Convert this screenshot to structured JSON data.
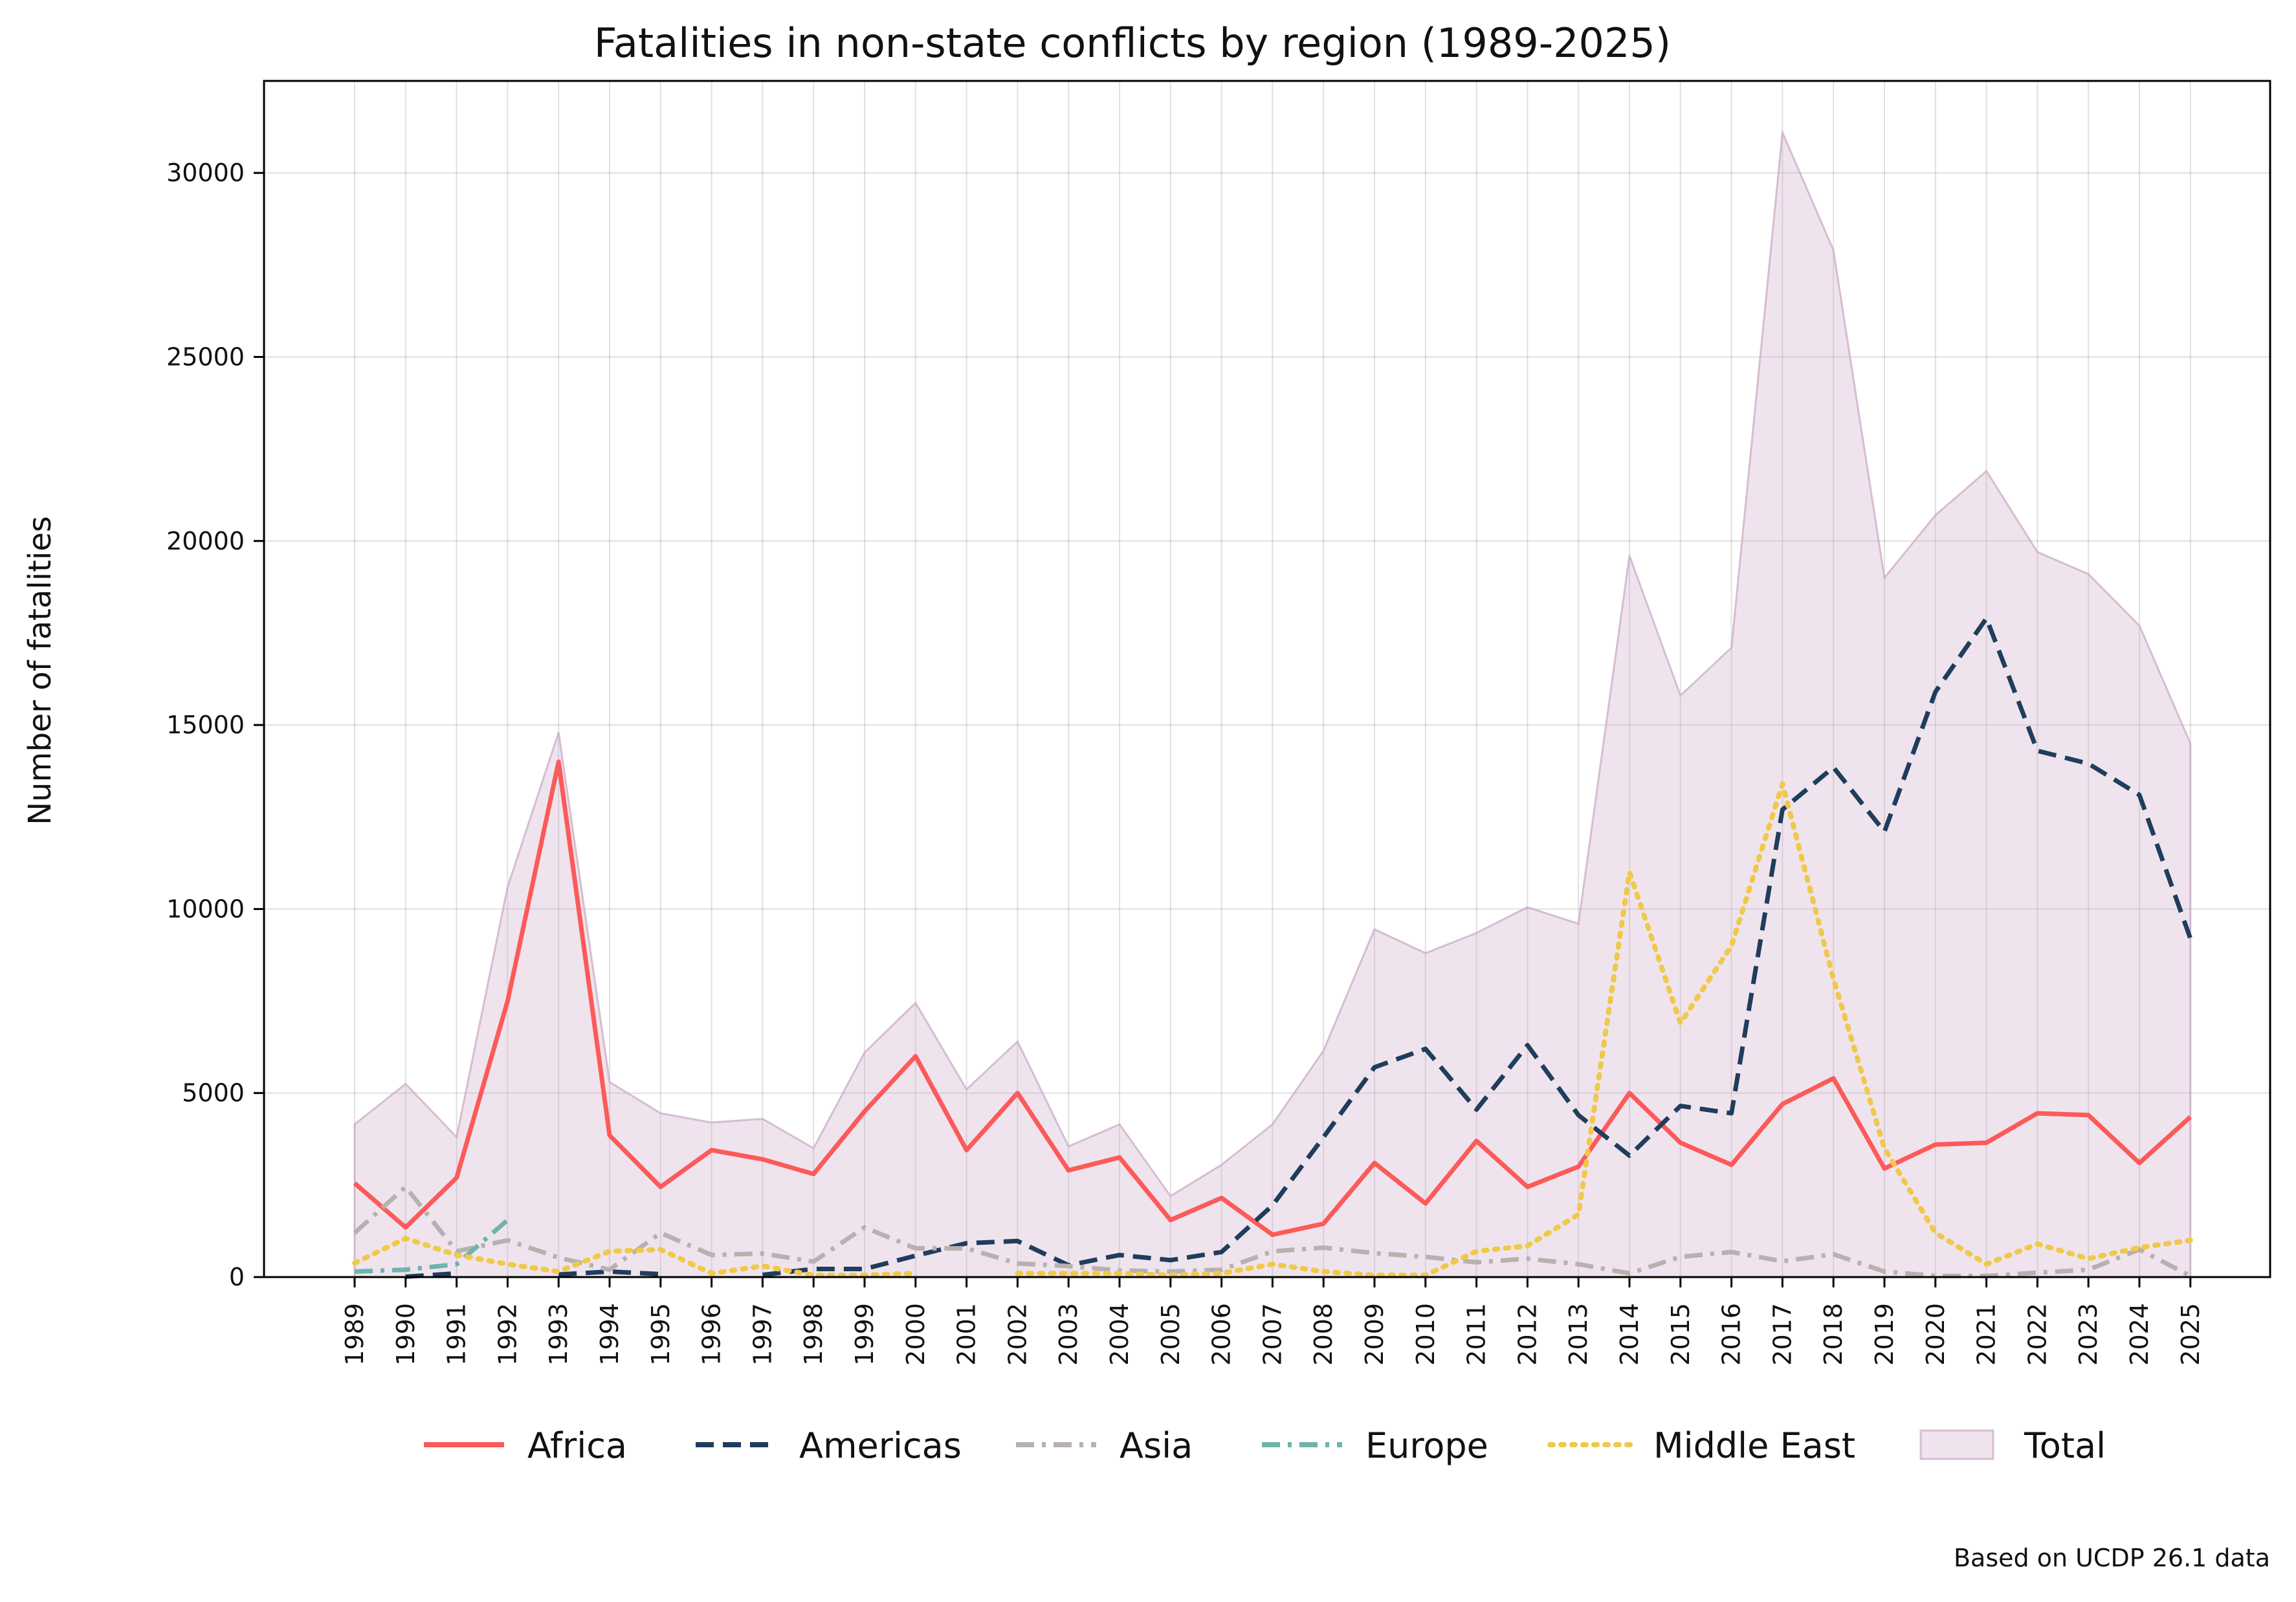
{
  "chart_data": {
    "type": "line",
    "title": "Fatalities in non-state conflicts by region (1989-2025)",
    "xlabel": "",
    "ylabel": "Number of fatalities",
    "ylim": [
      0,
      32500
    ],
    "yticks": [
      0,
      5000,
      10000,
      15000,
      20000,
      25000,
      30000
    ],
    "grid": true,
    "legend_position": "bottom",
    "x": [
      "1989",
      "1990",
      "1991",
      "1992",
      "1993",
      "1994",
      "1995",
      "1996",
      "1997",
      "1998",
      "1999",
      "2000",
      "2001",
      "2002",
      "2003",
      "2004",
      "2005",
      "2006",
      "2007",
      "2008",
      "2009",
      "2010",
      "2011",
      "2012",
      "2013",
      "2014",
      "2015",
      "2016",
      "2017",
      "2018",
      "2019",
      "2020",
      "2021",
      "2022",
      "2023",
      "2024",
      "2025"
    ],
    "series": [
      {
        "name": "Africa",
        "color": "#fc5a5a",
        "style": "solid",
        "values": [
          2550,
          1350,
          2700,
          7500,
          14000,
          3850,
          2450,
          3450,
          3200,
          2800,
          4500,
          6000,
          3450,
          5000,
          2900,
          3250,
          1550,
          2150,
          1150,
          1450,
          3100,
          2000,
          3700,
          2450,
          3000,
          5000,
          3650,
          3050,
          4700,
          5400,
          2950,
          3600,
          3650,
          4450,
          4400,
          3100,
          4350
        ]
      },
      {
        "name": "Americas",
        "color": "#1f3d5c",
        "style": "dashed",
        "values": [
          null,
          10,
          100,
          null,
          70,
          150,
          80,
          null,
          60,
          220,
          220,
          580,
          920,
          980,
          320,
          600,
          460,
          680,
          1950,
          3800,
          5700,
          6200,
          4550,
          6300,
          4400,
          3300,
          4650,
          4450,
          12700,
          13850,
          12100,
          15900,
          17900,
          14300,
          13950,
          13100,
          9200
        ]
      },
      {
        "name": "Asia",
        "color": "#b7b1af",
        "style": "dashdot",
        "values": [
          1200,
          2450,
          700,
          1000,
          530,
          200,
          1200,
          600,
          640,
          420,
          1350,
          780,
          780,
          370,
          300,
          180,
          150,
          200,
          700,
          800,
          650,
          550,
          400,
          500,
          350,
          100,
          550,
          680,
          430,
          620,
          150,
          30,
          30,
          120,
          200,
          750,
          30
        ]
      },
      {
        "name": "Europe",
        "color": "#6fb3ad",
        "style": "dashdot",
        "values": [
          150,
          200,
          350,
          1550,
          null,
          null,
          null,
          null,
          null,
          50,
          null,
          null,
          null,
          null,
          null,
          null,
          null,
          null,
          null,
          null,
          null,
          null,
          null,
          null,
          null,
          null,
          null,
          null,
          null,
          null,
          null,
          null,
          null,
          null,
          null,
          null,
          null
        ]
      },
      {
        "name": "Middle East",
        "color": "#f0c94a",
        "style": "dotted",
        "values": [
          380,
          1050,
          600,
          350,
          150,
          700,
          750,
          100,
          300,
          50,
          50,
          100,
          null,
          100,
          100,
          100,
          50,
          100,
          350,
          150,
          50,
          50,
          700,
          850,
          1700,
          11000,
          6900,
          9000,
          13400,
          8100,
          3500,
          1200,
          350,
          900,
          500,
          800,
          1000
        ]
      },
      {
        "name": "Total",
        "color": "#c9a7c2",
        "style": "area",
        "values": [
          4150,
          5250,
          3800,
          10600,
          14800,
          5300,
          4450,
          4200,
          4300,
          3500,
          6100,
          7450,
          5100,
          6400,
          3550,
          4150,
          2200,
          3050,
          4150,
          6150,
          9450,
          8800,
          9350,
          10050,
          9600,
          19600,
          15800,
          17100,
          31100,
          27900,
          19000,
          20700,
          21900,
          19700,
          19100,
          17700,
          14500
        ]
      }
    ],
    "footnote": "Based on UCDP 26.1 data"
  }
}
